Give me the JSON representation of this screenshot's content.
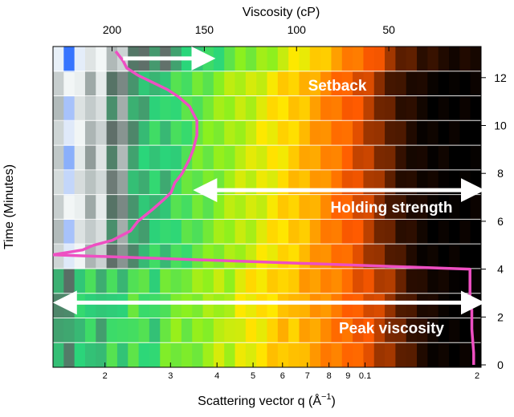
{
  "chart_data": {
    "type": "heatmap",
    "title": "",
    "xlabel": "Scattering vector q (Å",
    "xlabel_superscript": "−1",
    "xlabel_suffix": ")",
    "x2label": "Viscosity (cP)",
    "ylabel": "Time (Minutes)",
    "x_scale": "log",
    "xlim": [
      0.0145,
      0.205
    ],
    "x_ticks": [
      {
        "value": 0.02,
        "label": "2"
      },
      {
        "value": 0.03,
        "label": "3"
      },
      {
        "value": 0.04,
        "label": "4"
      },
      {
        "value": 0.05,
        "label": "5"
      },
      {
        "value": 0.06,
        "label": "6"
      },
      {
        "value": 0.07,
        "label": "7"
      },
      {
        "value": 0.08,
        "label": "8"
      },
      {
        "value": 0.09,
        "label": "9"
      },
      {
        "value": 0.1,
        "label": "0.1"
      },
      {
        "value": 0.2,
        "label": "2"
      }
    ],
    "x2lim": [
      232,
      0
    ],
    "x2_ticks": [
      {
        "value": 200,
        "label": "200"
      },
      {
        "value": 150,
        "label": "150"
      },
      {
        "value": 100,
        "label": "100"
      },
      {
        "value": 50,
        "label": "50"
      }
    ],
    "ylim": [
      -0.1,
      13.3
    ],
    "y_ticks": [
      0,
      2,
      4,
      6,
      8,
      10,
      12
    ],
    "heatmap_bands": 13,
    "heatmap_colormap": [
      "#000000",
      "#2a0d00",
      "#8a2e00",
      "#ff5a00",
      "#ff9a00",
      "#ffe800",
      "#8cf01e",
      "#2ad67a",
      "#5a6a64",
      "#c0c8c8",
      "#f4f8f8",
      "#1e64ff"
    ],
    "heatmap_columns_log_q": {
      "phase_low_time": [
        0.68,
        0.7,
        0.65,
        0.63,
        0.66,
        0.62,
        0.64,
        0.6,
        0.61,
        0.63,
        0.58,
        0.56,
        0.57,
        0.55,
        0.53,
        0.51,
        0.52,
        0.48,
        0.46,
        0.45,
        0.43,
        0.41,
        0.42,
        0.38,
        0.36,
        0.34,
        0.32,
        0.3,
        0.27,
        0.25,
        0.22,
        0.19,
        0.15,
        0.11,
        0.07,
        0.04,
        0.02,
        0.01,
        0.0,
        0.0
      ],
      "phase_high_time": [
        0.83,
        0.93,
        0.88,
        0.8,
        0.86,
        0.72,
        0.78,
        0.68,
        0.66,
        0.64,
        0.65,
        0.62,
        0.6,
        0.58,
        0.57,
        0.55,
        0.53,
        0.51,
        0.5,
        0.48,
        0.46,
        0.44,
        0.42,
        0.4,
        0.37,
        0.34,
        0.31,
        0.28,
        0.25,
        0.22,
        0.18,
        0.14,
        0.1,
        0.07,
        0.04,
        0.02,
        0.01,
        0.0,
        0.0,
        0.0
      ]
    },
    "series": [
      {
        "name": "Viscosity",
        "color": "#ee4fc2",
        "axis": "x2",
        "x_viscosity": [
          4,
          4,
          5,
          5,
          6,
          6,
          6,
          232,
          216,
          210,
          200,
          190,
          186,
          178,
          172,
          168,
          166,
          164,
          162,
          160,
          158,
          156,
          154,
          154,
          158,
          164,
          170,
          178,
          186,
          192,
          194,
          196,
          198
        ],
        "y_time": [
          0.0,
          0.5,
          1.5,
          2.3,
          2.4,
          3.0,
          4.0,
          4.6,
          4.8,
          5.0,
          5.2,
          5.6,
          6.0,
          6.5,
          6.9,
          7.2,
          7.6,
          7.8,
          8.0,
          8.3,
          8.6,
          9.0,
          9.6,
          10.2,
          10.8,
          11.2,
          11.5,
          11.8,
          12.1,
          12.4,
          12.7,
          12.9,
          13.1
        ]
      }
    ],
    "annotations": [
      {
        "label": "Setback",
        "arrow": "right",
        "arrow_x_viscosity": [
          194,
          150
        ],
        "arrow_y_time": 12.8,
        "label_y_time": 11.7
      },
      {
        "label": "Holding strength",
        "arrow": "both",
        "arrow_x_viscosity": [
          150,
          4
        ],
        "arrow_y_time": 7.3,
        "label_y_time": 6.6
      },
      {
        "label": "Peak viscosity",
        "arrow": "both",
        "arrow_x_viscosity": [
          226,
          4
        ],
        "arrow_y_time": 2.6,
        "label_y_time": 1.55
      }
    ]
  }
}
